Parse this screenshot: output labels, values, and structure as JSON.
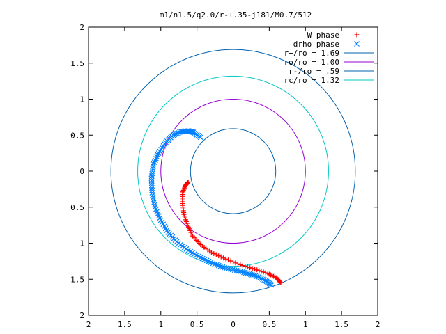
{
  "chart_data": {
    "type": "scatter",
    "title": "m1/n1.5/q2.0/r-+.35-j181/M0.7/512",
    "xlabel": "",
    "ylabel": "",
    "xlim": [
      -2,
      2
    ],
    "ylim": [
      -2,
      2
    ],
    "x_ticks": [
      -2,
      -1.5,
      -1,
      -0.5,
      0,
      0.5,
      1,
      1.5,
      2
    ],
    "y_ticks": [
      -2,
      -1.5,
      -1,
      -0.5,
      0,
      0.5,
      1,
      1.5,
      2
    ],
    "x_tick_labels": [
      "2",
      "1.5",
      "1",
      "0.5",
      "0",
      "0.5",
      "1",
      "1.5",
      "2"
    ],
    "y_tick_labels": [
      "2",
      "1.5",
      "1",
      "0.5",
      "0",
      "0.5",
      "1",
      "1.5",
      "2"
    ],
    "grid": false,
    "legend_position": "top-right",
    "series": [
      {
        "name": "W phase",
        "kind": "points",
        "marker": "plus",
        "color": "#ff0000",
        "x": [
          -0.62,
          -0.66,
          -0.7,
          -0.7,
          -0.68,
          -0.63,
          -0.56,
          -0.45,
          -0.3,
          -0.1,
          0.1,
          0.3,
          0.48,
          0.6,
          0.66
        ],
        "y": [
          -0.15,
          -0.2,
          -0.3,
          -0.45,
          -0.6,
          -0.75,
          -0.9,
          -1.02,
          -1.13,
          -1.22,
          -1.3,
          -1.36,
          -1.42,
          -1.48,
          -1.55
        ]
      },
      {
        "name": "drho phase",
        "kind": "points",
        "marker": "cross",
        "color": "#0080ff",
        "x": [
          -0.45,
          -0.55,
          -0.62,
          -0.72,
          -0.83,
          -0.93,
          -1.03,
          -1.1,
          -1.13,
          -1.12,
          -1.08,
          -1.0,
          -0.9,
          -0.78,
          -0.62,
          -0.45,
          -0.28,
          -0.12,
          0.05,
          0.2,
          0.33,
          0.45,
          0.53
        ],
        "y": [
          0.47,
          0.54,
          0.56,
          0.55,
          0.5,
          0.4,
          0.25,
          0.1,
          -0.1,
          -0.3,
          -0.5,
          -0.68,
          -0.85,
          -0.98,
          -1.1,
          -1.2,
          -1.28,
          -1.34,
          -1.38,
          -1.42,
          -1.46,
          -1.52,
          -1.58
        ]
      },
      {
        "name": "r+/ro = 1.69",
        "kind": "circle",
        "radius": 1.69,
        "color": "#0060ad"
      },
      {
        "name": "ro/ro = 1.00",
        "kind": "circle",
        "radius": 1.0,
        "color": "#9400d3"
      },
      {
        "name": "r-/ro = .59",
        "kind": "circle",
        "radius": 0.59,
        "color": "#0060ad"
      },
      {
        "name": "rc/ro = 1.32",
        "kind": "circle",
        "radius": 1.32,
        "color": "#00c8c8"
      }
    ]
  }
}
